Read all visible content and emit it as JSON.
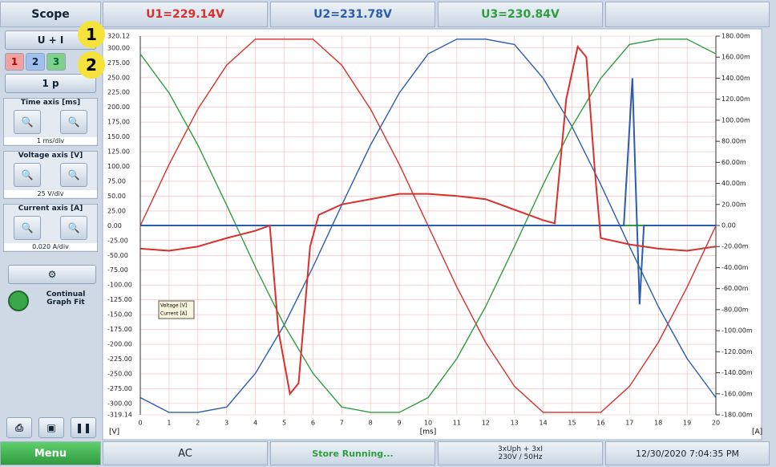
{
  "header": {
    "tabs": [
      "Scope",
      "U1=229.14V",
      "U2=231.78V",
      "U3=230.84V"
    ]
  },
  "sidebar": {
    "mode": "U + I",
    "channels": [
      "1",
      "2",
      "3"
    ],
    "phase": "1 p",
    "groups": [
      {
        "title": "Time axis [ms]",
        "scale": "1 ms/div"
      },
      {
        "title": "Voltage axis [V]",
        "scale": "25 V/div"
      },
      {
        "title": "Current axis [A]",
        "scale": "0.020 A/div"
      }
    ],
    "fit": "Continual Graph Fit"
  },
  "callouts": [
    "1",
    "2"
  ],
  "chart_data": {
    "type": "line",
    "x_label": "[ms]",
    "y_label": "[V]",
    "y2_label": "[A]",
    "legend": [
      "Voltage [V]",
      "Current [A]"
    ],
    "grid": true,
    "x": [
      0,
      1,
      2,
      3,
      4,
      5,
      6,
      7,
      8,
      9,
      10,
      11,
      12,
      13,
      14,
      15,
      16,
      17,
      18,
      19,
      20
    ],
    "xlim": [
      0,
      20
    ],
    "xticks": [
      0,
      1,
      2,
      3,
      4,
      5,
      6,
      7,
      8,
      9,
      10,
      11,
      12,
      13,
      14,
      15,
      16,
      17,
      18,
      19,
      20
    ],
    "ylim": [
      -319.14,
      320.12
    ],
    "yticks": [
      320.12,
      {
        "value": 300,
        "label": "300.00"
      },
      {
        "value": 275,
        "label": "275.00"
      },
      {
        "value": 250,
        "label": "250.00"
      },
      {
        "value": 225,
        "label": "225.00"
      },
      {
        "value": 200,
        "label": "200.00"
      },
      {
        "value": 175,
        "label": "175.00"
      },
      {
        "value": 150,
        "label": "150.00"
      },
      {
        "value": 125,
        "label": "125.00"
      },
      {
        "value": 100,
        "label": "100.00"
      },
      {
        "value": 75,
        "label": "75.00"
      },
      {
        "value": 50,
        "label": "50.00"
      },
      {
        "value": 25,
        "label": "25.00"
      },
      {
        "value": 0,
        "label": "0.00"
      },
      {
        "value": -25,
        "label": "-25.00"
      },
      {
        "value": -50,
        "label": "-50.00"
      },
      {
        "value": -75,
        "label": "-75.00"
      },
      {
        "value": -100,
        "label": "-100.00"
      },
      {
        "value": -125,
        "label": "-125.00"
      },
      {
        "value": -150,
        "label": "-150.00"
      },
      {
        "value": -175,
        "label": "-175.00"
      },
      {
        "value": -200,
        "label": "-200.00"
      },
      {
        "value": -225,
        "label": "-225.00"
      },
      {
        "value": -250,
        "label": "-250.00"
      },
      {
        "value": -275,
        "label": "-275.00"
      },
      {
        "value": -300,
        "label": "-300.00"
      },
      -319.14
    ],
    "y2lim": [
      -0.18,
      0.18
    ],
    "y2ticks": [
      {
        "value": 0.18,
        "label": "180.00m"
      },
      {
        "value": 0.16,
        "label": "160.00m"
      },
      {
        "value": 0.14,
        "label": "140.00m"
      },
      {
        "value": 0.12,
        "label": "120.00m"
      },
      {
        "value": 0.1,
        "label": "100.00m"
      },
      {
        "value": 0.08,
        "label": "80.00m"
      },
      {
        "value": 0.06,
        "label": "60.00m"
      },
      {
        "value": 0.04,
        "label": "40.00m"
      },
      {
        "value": 0.02,
        "label": "20.00m"
      },
      {
        "value": 0,
        "label": "0.00"
      },
      {
        "value": -0.02,
        "label": "-20.00m"
      },
      {
        "value": -0.04,
        "label": "-40.00m"
      },
      {
        "value": -0.06,
        "label": "-60.00m"
      },
      {
        "value": -0.08,
        "label": "-80.00m"
      },
      {
        "value": -0.1,
        "label": "-100.00m"
      },
      {
        "value": -0.12,
        "label": "-120.00m"
      },
      {
        "value": -0.14,
        "label": "-140.00m"
      },
      {
        "value": -0.16,
        "label": "-160.00m"
      },
      {
        "value": -0.18,
        "label": "-180.00m"
      }
    ],
    "series": [
      {
        "color": "#d8302c",
        "values": [
          0,
          103.5,
          196.9,
          271,
          315,
          315,
          315,
          271,
          196.9,
          103.5,
          0,
          -103.5,
          -196.9,
          -271,
          -315,
          -315,
          -315,
          -271,
          -196.9,
          -103.5,
          0
        ]
      },
      {
        "color": "#2a5db0",
        "values": [
          -290.1,
          -315,
          -315,
          -306,
          -249,
          -167.5,
          -69.6,
          35,
          136.3,
          224.2,
          290.1,
          315,
          315,
          306,
          249,
          167.5,
          69.6,
          -35,
          -136.3,
          -224.2,
          -290.1
        ]
      },
      {
        "color": "#2e9e3e",
        "values": [
          290.1,
          224.2,
          136.3,
          35,
          -69.6,
          -167.5,
          -249,
          -306,
          -315,
          -315,
          -290.1,
          -224.2,
          -136.3,
          -35,
          69.6,
          167.5,
          249,
          306,
          315,
          315,
          290.1
        ]
      },
      {
        "color": "#2e9e3e",
        "axis": "y2",
        "x": [
          0,
          20
        ],
        "values": [
          0,
          0
        ]
      },
      {
        "color": "#2a5db0",
        "axis": "y2",
        "x": [
          0,
          16.8,
          17.1,
          17.2,
          17.35,
          17.5,
          20
        ],
        "values": [
          0,
          0,
          0.14,
          0.05,
          -0.075,
          0,
          0
        ]
      },
      {
        "color": "#d8302c",
        "axis": "y2",
        "x": [
          0,
          1,
          2,
          3,
          4,
          4.5,
          4.8,
          5.2,
          5.5,
          5.9,
          6.2,
          7,
          8,
          9,
          10,
          11,
          12,
          13,
          14,
          14.4,
          14.8,
          15.2,
          15.5,
          15.8,
          16,
          17,
          18,
          19,
          20
        ],
        "values": [
          -0.022,
          -0.024,
          -0.02,
          -0.012,
          -0.005,
          0,
          -0.1,
          -0.16,
          -0.15,
          -0.02,
          0.01,
          0.02,
          0.025,
          0.03,
          0.03,
          0.028,
          0.025,
          0.015,
          0.005,
          0.002,
          0.12,
          0.17,
          0.16,
          0.05,
          -0.012,
          -0.018,
          -0.022,
          -0.024,
          -0.02
        ]
      }
    ]
  },
  "footer": {
    "menu": "Menu",
    "mode": "AC",
    "status": "Store Running...",
    "wiring": "3xUph + 3xI",
    "nominal": "230V / 50Hz",
    "datetime": "12/30/2020 7:04:35 PM"
  }
}
